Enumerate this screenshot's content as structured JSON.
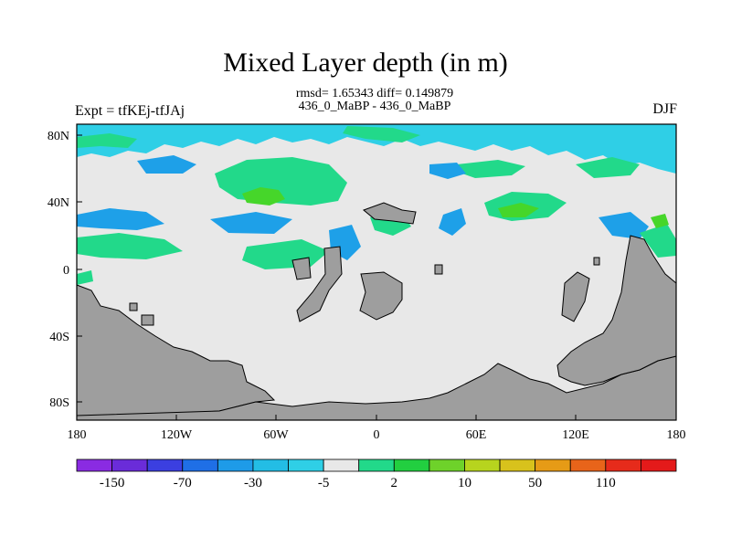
{
  "title": "Mixed Layer depth (in m)",
  "stats_line": "rmsd= 1.65343 diff= 0.149879",
  "subtitle": "436_0_MaBP - 436_0_MaBP",
  "left_label": "Expt = tfKEj-tfJAj",
  "right_label": "DJF",
  "lat_ticks": [
    "80N",
    "40N",
    "0",
    "40S",
    "80S"
  ],
  "lon_ticks": [
    "180",
    "120W",
    "60W",
    "0",
    "60E",
    "120E",
    "180"
  ],
  "colorbar": {
    "colors": [
      "#8a2be2",
      "#6a2cd9",
      "#3b3fe0",
      "#1f6fe6",
      "#1e9be8",
      "#23bde5",
      "#2fcfe6",
      "#e8e8e8",
      "#22d98a",
      "#22cf40",
      "#6ed22a",
      "#b7d41e",
      "#d8c21c",
      "#e69b16",
      "#e8641a",
      "#e62b1b",
      "#e41a1a"
    ],
    "labels": [
      "-150",
      "-70",
      "-30",
      "-5",
      "2",
      "10",
      "50",
      "110"
    ]
  },
  "map_colors": {
    "background": "#e8e8e8",
    "land": "#9e9e9e",
    "deep_blue": "#1ea0e8",
    "light_blue": "#2fcfe6",
    "green": "#22d98a",
    "bright_green": "#46d62a"
  }
}
